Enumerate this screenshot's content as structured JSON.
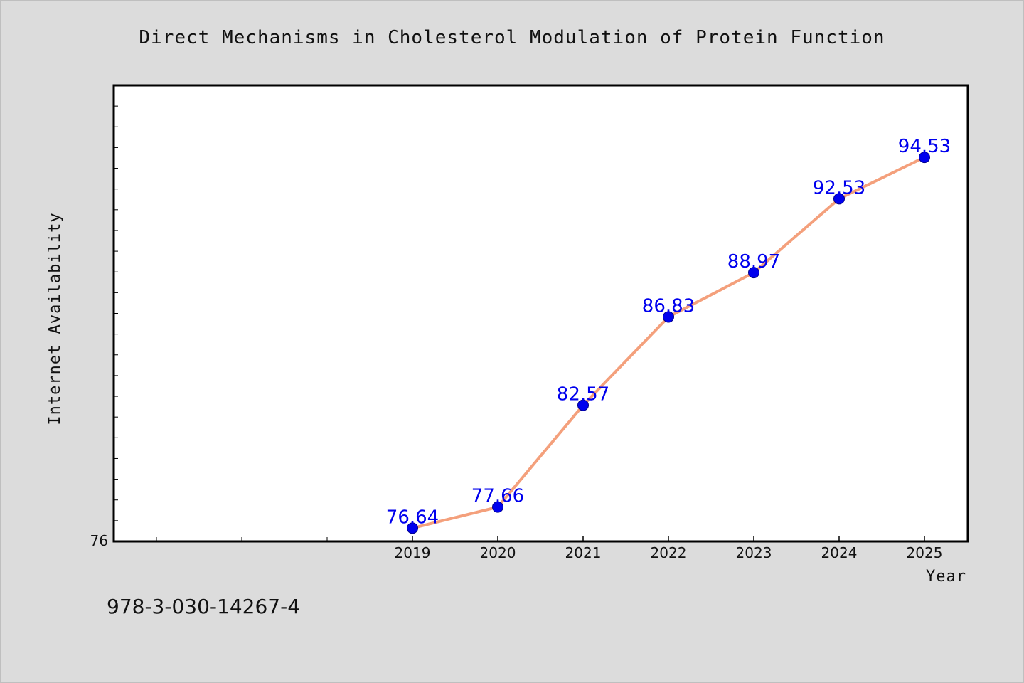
{
  "chart_data": {
    "type": "line",
    "title": "Direct Mechanisms in Cholesterol Modulation of Protein Function",
    "xlabel": "Year",
    "ylabel": "Internet Availability",
    "categories": [
      "2019",
      "2020",
      "2021",
      "2022",
      "2023",
      "2024",
      "2025"
    ],
    "series": [
      {
        "values": [
          76.64,
          77.66,
          82.57,
          86.83,
          88.97,
          92.53,
          94.53
        ],
        "labels": [
          "76.64",
          "77.66",
          "82.57",
          "86.83",
          "88.97",
          "92.53",
          "94.53"
        ]
      }
    ],
    "ylim": [
      76,
      98
    ],
    "y_tick_labels": [
      "76"
    ],
    "grid": false,
    "legend": "none",
    "line_color": "#f4a07c",
    "marker_color": "#0000ee",
    "label_color": "#0000ee",
    "plot_background": "#ffffff",
    "page_background": "#dcdcdc"
  },
  "annotation": "978-3-030-14267-4"
}
